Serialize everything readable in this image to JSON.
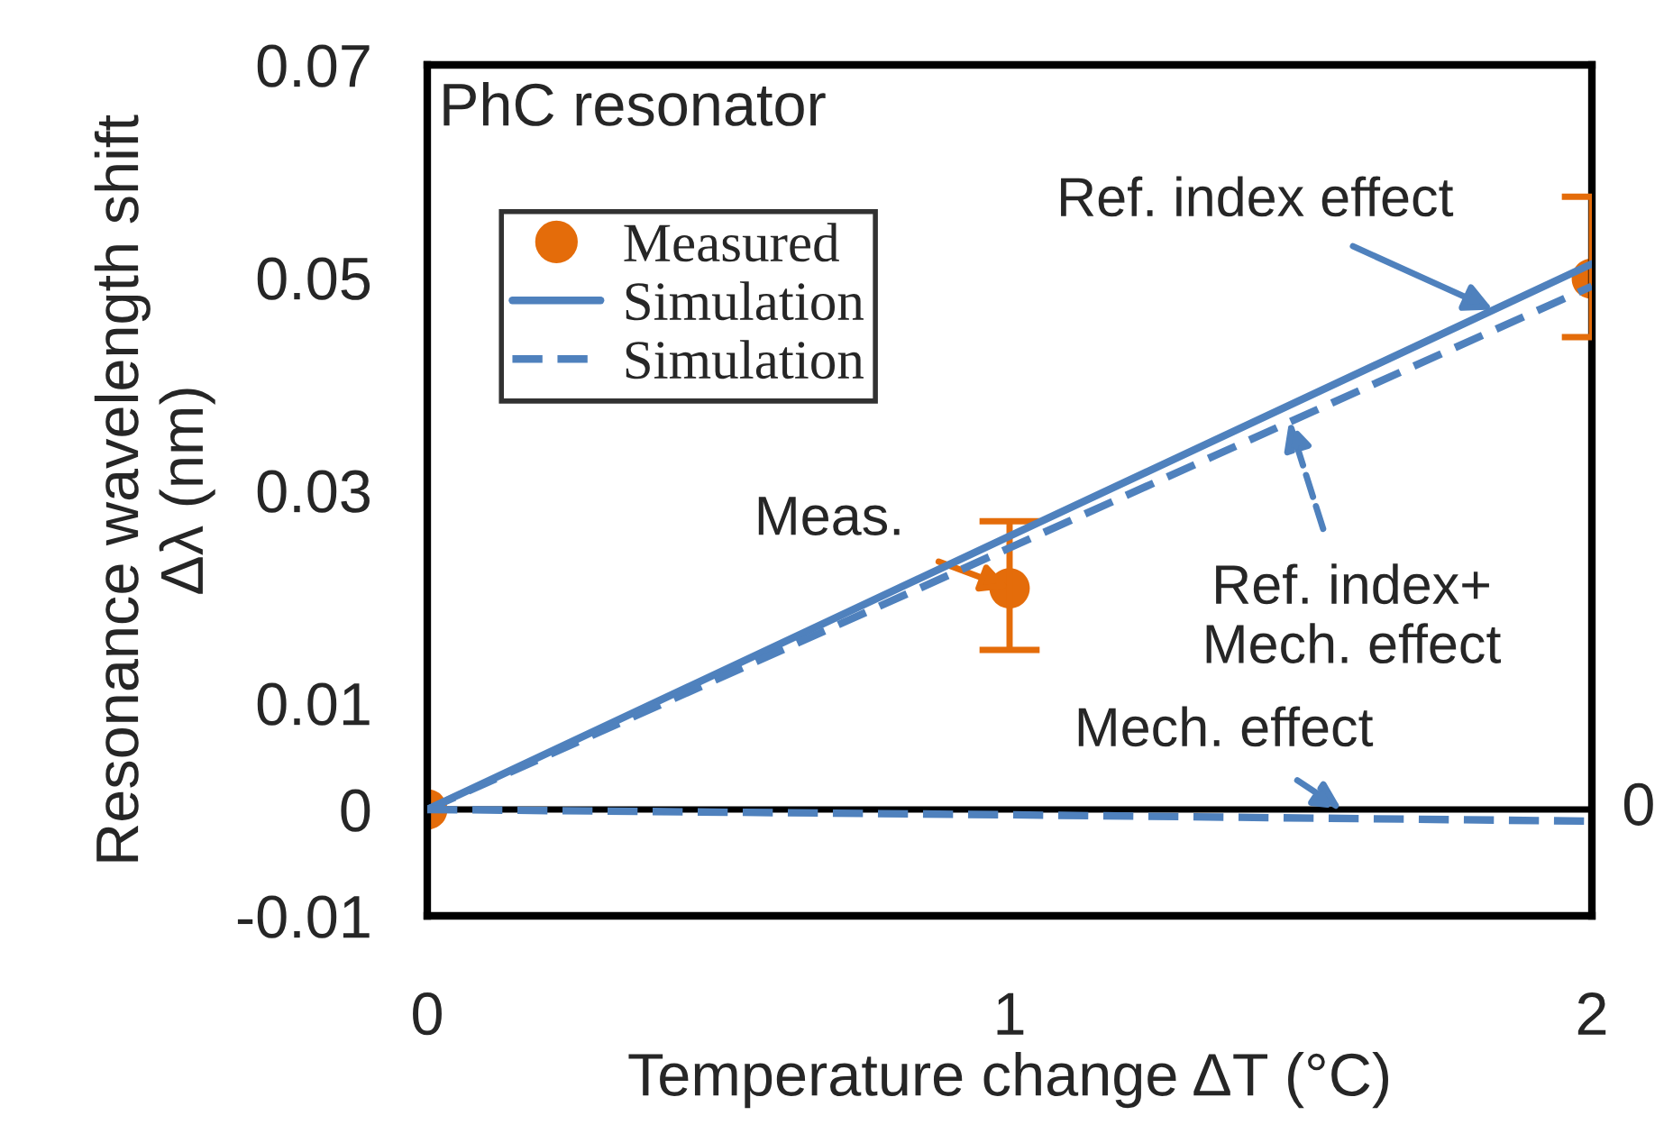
{
  "chart_data": {
    "type": "scatter",
    "xlabel": "Temperature change ΔT (°C)",
    "ylabel": "Resonance wavelength shift\nΔλ (nm)",
    "x": [
      0,
      1,
      2
    ],
    "xlim": [
      0,
      2
    ],
    "xticks": [
      0,
      1,
      2
    ],
    "ylim": [
      -0.01,
      0.07
    ],
    "yticks": [
      -0.01,
      0,
      0.01,
      0.03,
      0.05,
      0.07
    ],
    "series": [
      {
        "name": "Measured",
        "color": "#e46c0a",
        "marker": "circle",
        "values": [
          0,
          0.0208,
          0.0499
        ],
        "errors": [
          null,
          [
            0.015,
            0.0271
          ],
          [
            0.0444,
            0.0576
          ]
        ]
      },
      {
        "name": "Simulation",
        "type": "line",
        "color": "#4f81bd",
        "line_style": "solid",
        "values": [
          0,
          0.0257,
          0.0513
        ]
      },
      {
        "name": "Simulation",
        "type": "line",
        "color": "#4f81bd",
        "line_style": "dashed",
        "values": [
          0,
          0.0246,
          0.0492
        ]
      },
      {
        "type": "line",
        "color": "#4f81bd",
        "line_style": "dashed",
        "values": [
          0,
          -0.0005,
          -0.0011
        ]
      }
    ],
    "ref_lines": [
      {
        "axis": "y",
        "value": 0,
        "color": "#000000"
      }
    ],
    "legend": "top left",
    "grid": false,
    "annotations": [
      "PhC resonator",
      {
        "text": "Meas.",
        "x": 1,
        "y": 0.0208
      },
      {
        "text": "Ref. index effect",
        "x": 1.83,
        "y": 0.047
      },
      {
        "text": "Ref. index+\nMech. effect",
        "x": 1.48,
        "y": 0.0365
      },
      {
        "text": "Mech. effect",
        "x": 1.57,
        "y": 0
      },
      {
        "text": "0",
        "x": 2,
        "y": 0
      }
    ]
  }
}
